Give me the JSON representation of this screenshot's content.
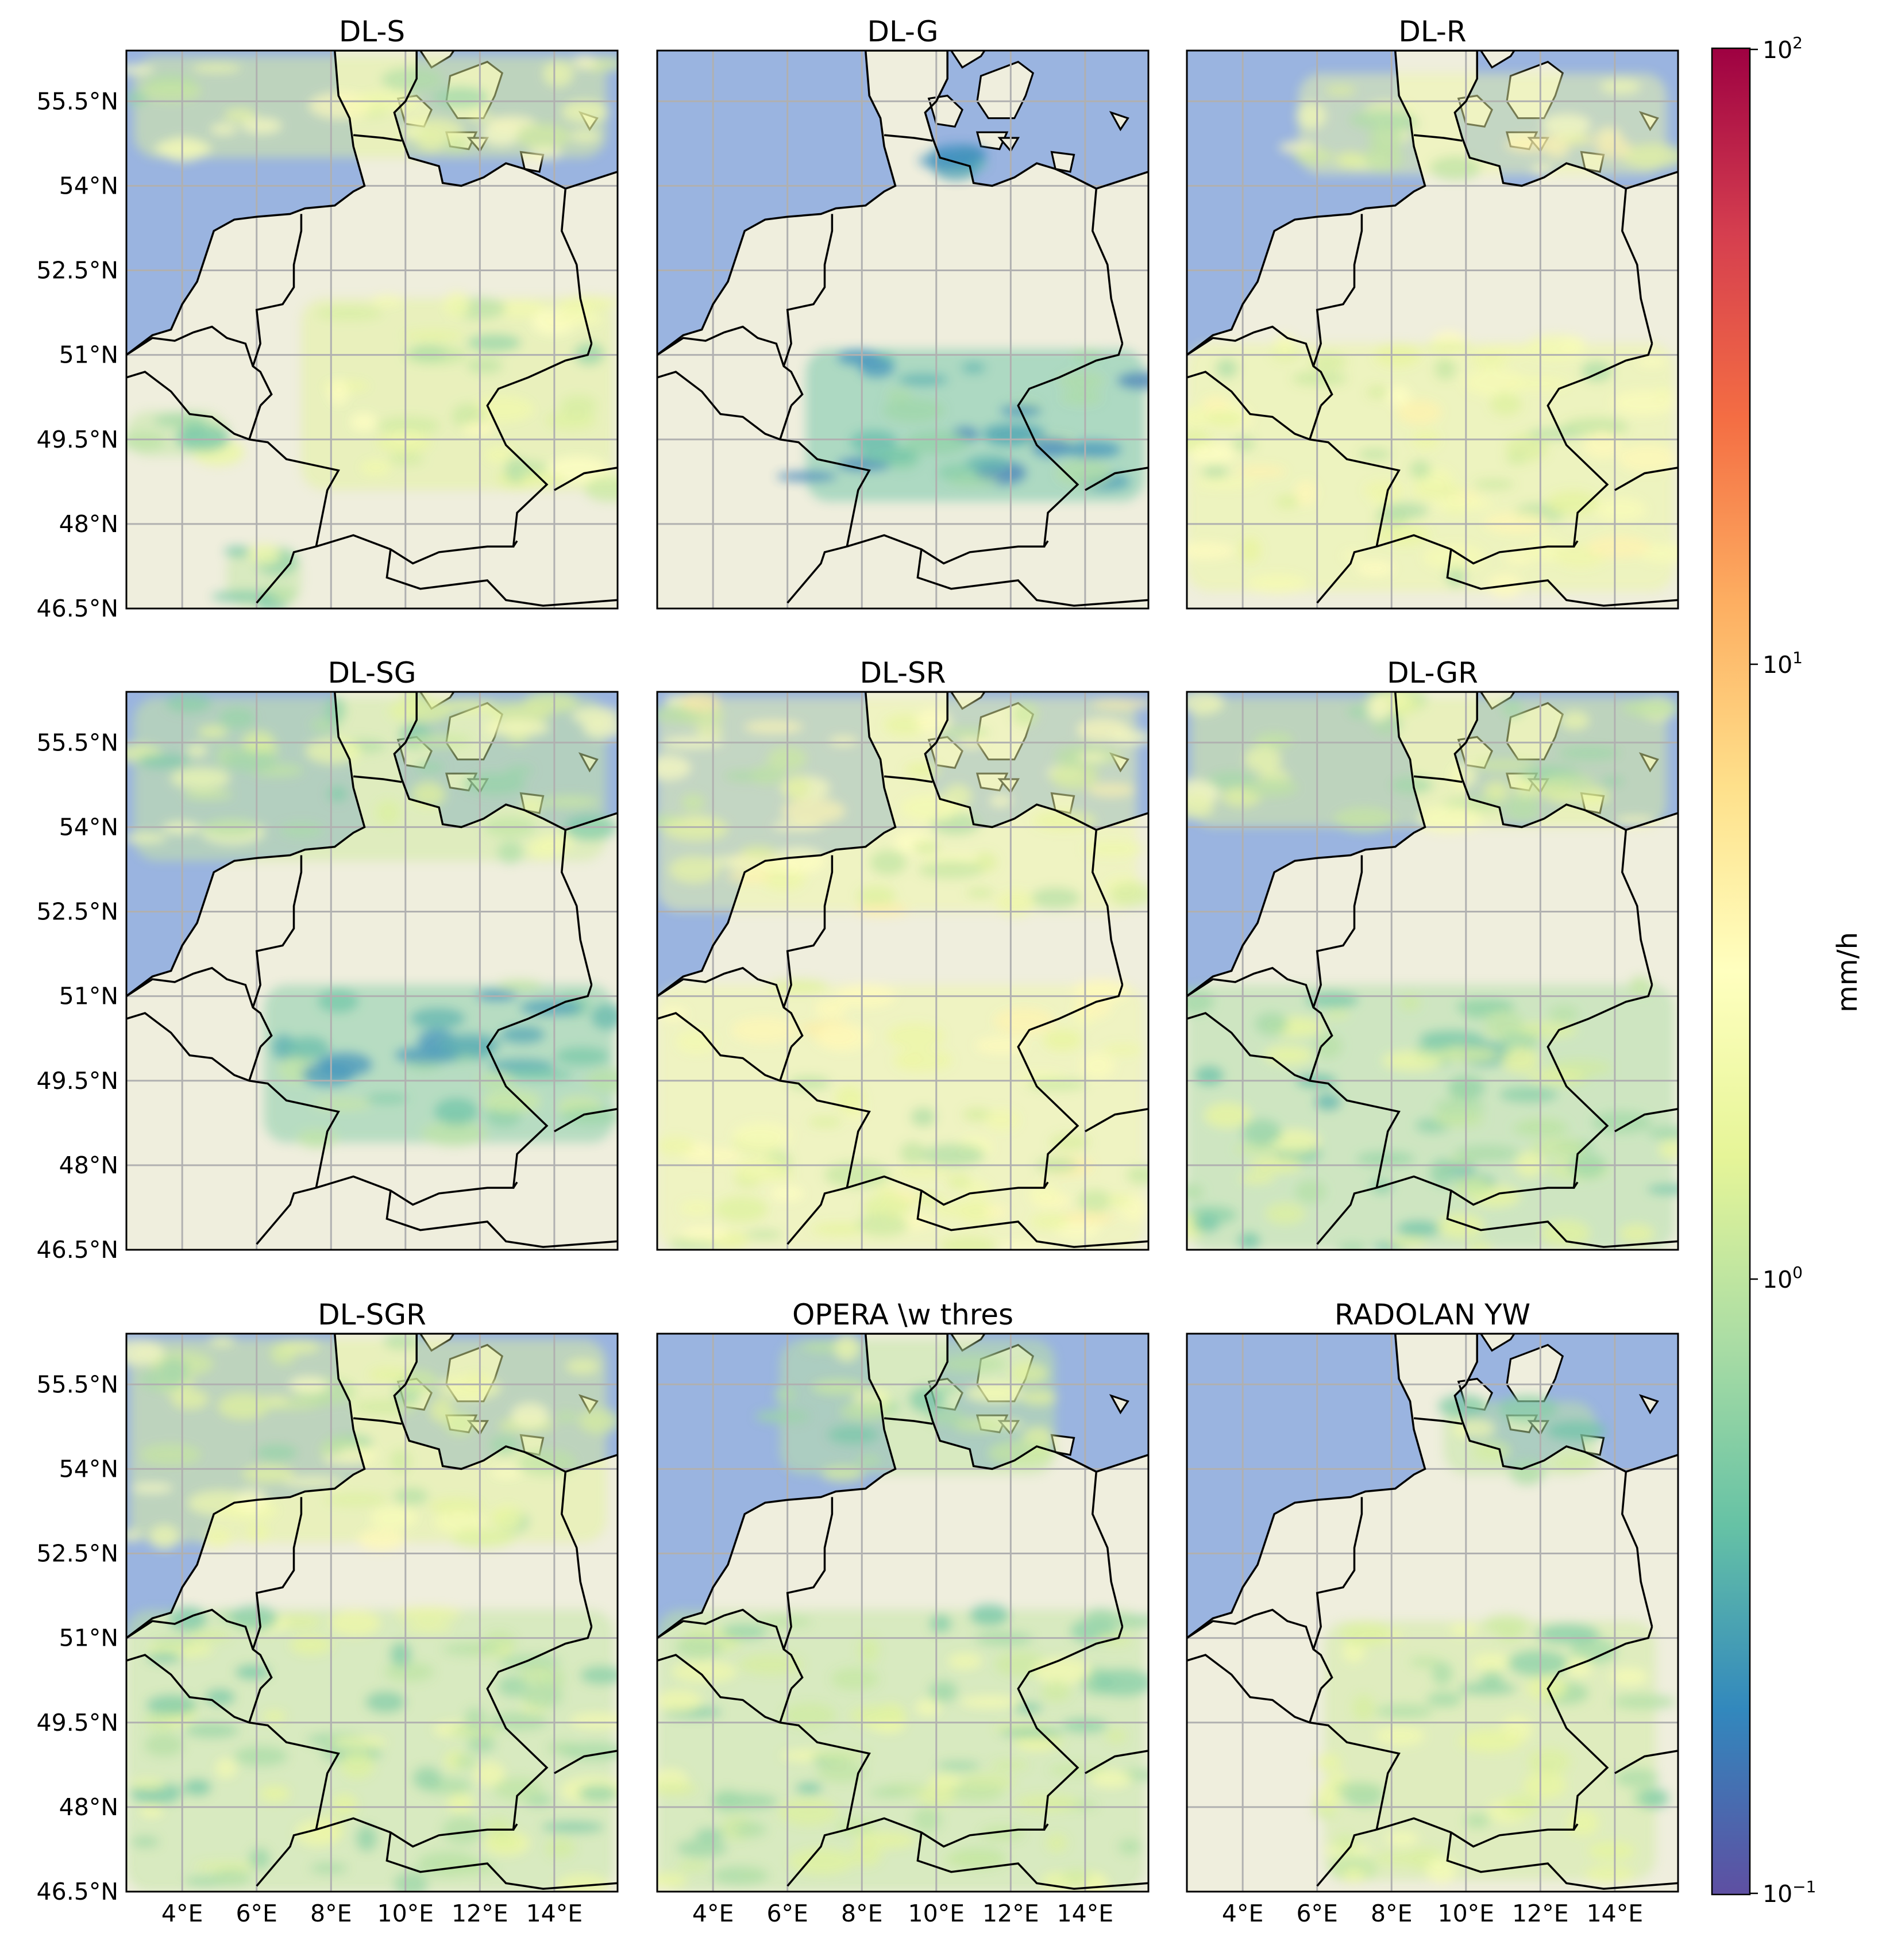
{
  "figure": {
    "panels": [
      {
        "title": "DL-S"
      },
      {
        "title": "DL-G"
      },
      {
        "title": "DL-R"
      },
      {
        "title": "DL-SG"
      },
      {
        "title": "DL-SR"
      },
      {
        "title": "DL-GR"
      },
      {
        "title": "DL-SGR"
      },
      {
        "title": "OPERA \\w thres"
      },
      {
        "title": "RADOLAN YW"
      }
    ],
    "lat_ticks": [
      "55.5°N",
      "54°N",
      "52.5°N",
      "51°N",
      "49.5°N",
      "48°N",
      "46.5°N"
    ],
    "lon_ticks": [
      "4°E",
      "6°E",
      "8°E",
      "10°E",
      "12°E",
      "14°E"
    ],
    "colorbar": {
      "label": "mm/h",
      "tick_base": "10",
      "tick_exponents": [
        "2",
        "1",
        "0",
        "−1"
      ],
      "scale": "log",
      "range": [
        0.1,
        100
      ],
      "colormap": "Spectral_r",
      "stops": [
        "#5e4fa2",
        "#3288bd",
        "#66c2a5",
        "#abdda4",
        "#e6f598",
        "#ffffbf",
        "#fee08b",
        "#fdae61",
        "#f46d43",
        "#d53e4f",
        "#9e0142"
      ]
    },
    "colors": {
      "sea": "#9ab4e0",
      "land": "#efeedd",
      "grid": "#b0b0b0",
      "border": "#000000"
    }
  },
  "chart_data": {
    "type": "heatmap",
    "projection": "geographic",
    "lon_range": [
      2.5,
      15.7
    ],
    "lat_range": [
      46.5,
      56.4
    ],
    "gridlines": true,
    "lat_ticks_deg": [
      55.5,
      54,
      52.5,
      51,
      49.5,
      48,
      46.5
    ],
    "lon_ticks_deg": [
      4,
      6,
      8,
      10,
      12,
      14
    ],
    "value_unit": "mm/h",
    "value_scale": "log",
    "value_range": [
      0.1,
      100
    ],
    "panels": [
      {
        "title": "DL-S",
        "rain_bands": [
          {
            "lon": [
              7.2,
              15.6
            ],
            "lat": [
              48.6,
              52.0
            ],
            "mm_h": 1.5
          },
          {
            "lon": [
              2.5,
              5.2
            ],
            "lat": [
              49.2,
              50.0
            ],
            "mm_h": 1.0
          },
          {
            "lon": [
              5.2,
              7.2
            ],
            "lat": [
              46.5,
              47.6
            ],
            "mm_h": 1.0
          },
          {
            "lon": [
              2.7,
              15.4
            ],
            "lat": [
              54.5,
              56.3
            ],
            "mm_h": 1.5
          }
        ]
      },
      {
        "title": "DL-G",
        "rain_bands": [
          {
            "lon": [
              6.5,
              15.6
            ],
            "lat": [
              48.4,
              51.1
            ],
            "mm_h": 0.4
          },
          {
            "lon": [
              9.5,
              10.9
            ],
            "lat": [
              54.3,
              54.6
            ],
            "mm_h": 0.2
          }
        ]
      },
      {
        "title": "DL-R",
        "rain_bands": [
          {
            "lon": [
              2.5,
              15.6
            ],
            "lat": [
              46.8,
              51.2
            ],
            "mm_h": 1.8
          },
          {
            "lon": [
              5.5,
              15.4
            ],
            "lat": [
              54.2,
              56.0
            ],
            "mm_h": 2.0
          }
        ]
      },
      {
        "title": "DL-SG",
        "rain_bands": [
          {
            "lon": [
              6.2,
              15.6
            ],
            "lat": [
              48.4,
              51.2
            ],
            "mm_h": 0.5
          },
          {
            "lon": [
              2.7,
              15.4
            ],
            "lat": [
              53.4,
              56.3
            ],
            "mm_h": 1.2
          }
        ]
      },
      {
        "title": "DL-SR",
        "rain_bands": [
          {
            "lon": [
              2.5,
              15.6
            ],
            "lat": [
              46.5,
              51.2
            ],
            "mm_h": 2.0
          },
          {
            "lon": [
              2.5,
              15.4
            ],
            "lat": [
              52.5,
              56.3
            ],
            "mm_h": 2.0
          }
        ]
      },
      {
        "title": "DL-GR",
        "rain_bands": [
          {
            "lon": [
              2.5,
              15.6
            ],
            "lat": [
              46.5,
              51.2
            ],
            "mm_h": 0.8
          },
          {
            "lon": [
              2.6,
              15.4
            ],
            "lat": [
              54.0,
              56.3
            ],
            "mm_h": 1.5
          }
        ]
      },
      {
        "title": "DL-SGR",
        "rain_bands": [
          {
            "lon": [
              2.5,
              15.6
            ],
            "lat": [
              46.5,
              51.5
            ],
            "mm_h": 1.0
          },
          {
            "lon": [
              2.6,
              15.4
            ],
            "lat": [
              52.7,
              56.3
            ],
            "mm_h": 1.5
          }
        ]
      },
      {
        "title": "OPERA \\w thres",
        "rain_bands": [
          {
            "lon": [
              2.5,
              15.6
            ],
            "lat": [
              46.5,
              51.5
            ],
            "mm_h": 1.0
          },
          {
            "lon": [
              5.8,
              13.2
            ],
            "lat": [
              53.9,
              56.3
            ],
            "mm_h": 1.0
          }
        ]
      },
      {
        "title": "RADOLAN YW",
        "rain_bands": [
          {
            "lon": [
              6.2,
              15.1
            ],
            "lat": [
              46.7,
              51.3
            ],
            "mm_h": 1.2
          },
          {
            "lon": [
              9.4,
              13.5
            ],
            "lat": [
              53.9,
              55.2
            ],
            "mm_h": 1.0
          }
        ]
      }
    ]
  }
}
